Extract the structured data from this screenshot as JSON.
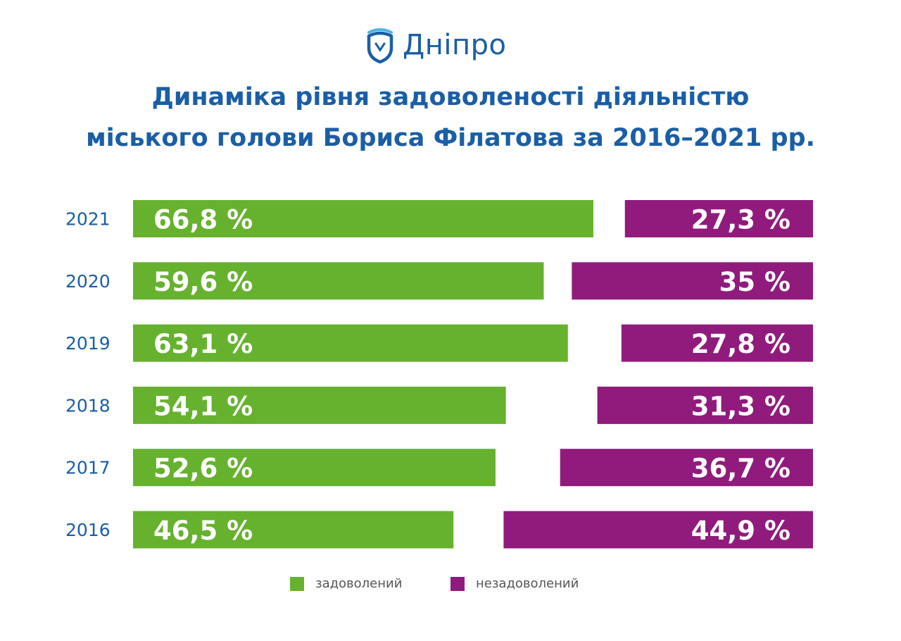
{
  "logo": {
    "text": "Дніпро",
    "icon": "city-shield-logo"
  },
  "title_lines": [
    "Динаміка рівня задоволеності діяльністю",
    "міського голови Бориса Філатова за 2016–2021 рр."
  ],
  "colors": {
    "satisfied": "#66b22e",
    "dissatisfied": "#901b7c",
    "title": "#1a5ea6",
    "year": "#1a5ea6"
  },
  "legend": [
    {
      "label": "задоволений",
      "color": "#66b22e"
    },
    {
      "label": "незадоволений",
      "color": "#901b7c"
    }
  ],
  "chart_data": {
    "type": "bar",
    "orientation": "horizontal",
    "title": "Динаміка рівня задоволеності діяльністю міського голови Бориса Філатова за 2016–2021 рр.",
    "categories": [
      "2021",
      "2020",
      "2019",
      "2018",
      "2017",
      "2016"
    ],
    "series": [
      {
        "name": "задоволений",
        "values": [
          66.8,
          59.6,
          63.1,
          54.1,
          52.6,
          46.5
        ],
        "labels": [
          "66,8 %",
          "59,6 %",
          "63,1 %",
          "54,1 %",
          "52,6 %",
          "46,5 %"
        ]
      },
      {
        "name": "незадоволений",
        "values": [
          27.3,
          35,
          27.8,
          31.3,
          36.7,
          44.9
        ],
        "labels": [
          "27,3 %",
          "35 %",
          "27,8 %",
          "31,3 %",
          "36,7 %",
          "44,9 %"
        ]
      }
    ],
    "unit": "%",
    "legend_position": "bottom-center"
  }
}
